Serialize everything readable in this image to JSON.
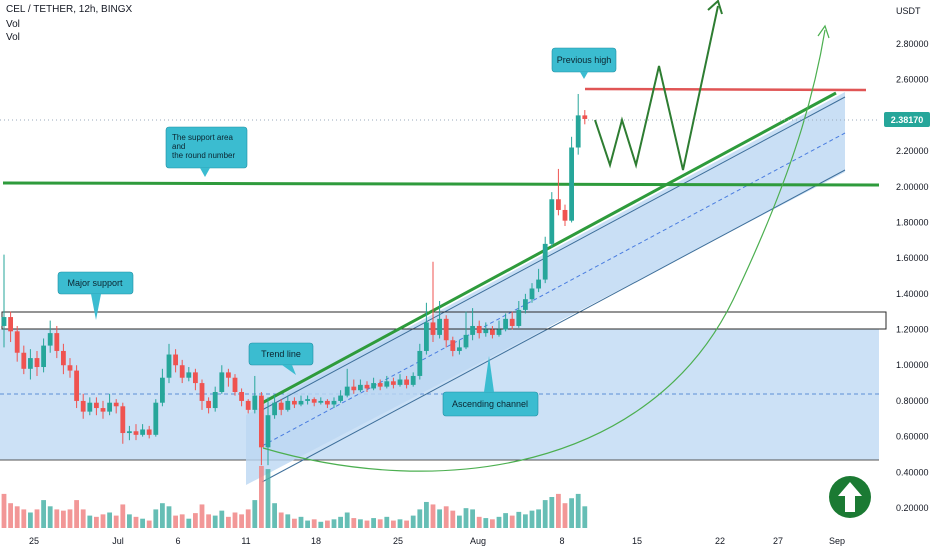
{
  "header": {
    "symbol": "CEL / TETHER, 12h, BINGX",
    "indicator1": "Vol",
    "indicator2": "Vol"
  },
  "currency": "USDT",
  "last_price": "2.38170",
  "colors": {
    "up": "#26a69a",
    "down": "#ef5350",
    "vol_up": "#4bb3a8",
    "vol_down": "#f08585",
    "drawing_green": "#2e9b3c",
    "resistance_red": "#e05555",
    "channel_fill": "#bbd7f3",
    "callout_bg": "#3bbcd0",
    "price_label_bg": "#26a69a",
    "logo_green": "#1b7a33"
  },
  "chart_data": {
    "type": "candlestick",
    "title": "CEL / TETHER, 12h, BINGX",
    "ylim": [
      0.1,
      3.1
    ],
    "yticks": [
      0.2,
      0.4,
      0.6,
      0.8,
      1.0,
      1.2,
      1.4,
      1.6,
      1.8,
      2.0,
      2.2,
      2.4,
      2.6,
      2.8
    ],
    "ytick_labels": [
      "0.20000",
      "0.40000",
      "0.60000",
      "0.80000",
      "1.00000",
      "1.20000",
      "1.40000",
      "1.60000",
      "1.80000",
      "2.00000",
      "2.20000",
      "2.40000",
      "2.60000",
      "2.80000"
    ],
    "xtick_labels": [
      "25",
      "Jul",
      "6",
      "11",
      "18",
      "25",
      "Aug",
      "8",
      "15",
      "22",
      "27",
      "Sep"
    ],
    "last_price": 2.3817,
    "levels": {
      "support_round_number": 2.0,
      "previous_high": 2.53,
      "major_support_top": 1.29,
      "major_support_bottom": 1.2
    },
    "candles": [
      [
        1.22,
        1.27,
        1.62,
        1.1
      ],
      [
        1.27,
        1.19,
        1.3,
        1.13
      ],
      [
        1.19,
        1.07,
        1.22,
        1.02
      ],
      [
        1.07,
        0.98,
        1.11,
        0.95
      ],
      [
        0.98,
        1.04,
        1.09,
        0.92
      ],
      [
        1.04,
        0.99,
        1.08,
        0.94
      ],
      [
        0.99,
        1.11,
        1.15,
        0.96
      ],
      [
        1.11,
        1.18,
        1.25,
        1.07
      ],
      [
        1.18,
        1.08,
        1.22,
        1.04
      ],
      [
        1.08,
        1.0,
        1.12,
        0.95
      ],
      [
        1.0,
        0.97,
        1.04,
        0.93
      ],
      [
        0.97,
        0.8,
        1.0,
        0.76
      ],
      [
        0.8,
        0.74,
        0.84,
        0.7
      ],
      [
        0.74,
        0.79,
        0.82,
        0.72
      ],
      [
        0.79,
        0.76,
        0.82,
        0.72
      ],
      [
        0.76,
        0.74,
        0.8,
        0.7
      ],
      [
        0.74,
        0.79,
        0.84,
        0.72
      ],
      [
        0.79,
        0.77,
        0.81,
        0.73
      ],
      [
        0.77,
        0.62,
        0.79,
        0.56
      ],
      [
        0.62,
        0.63,
        0.66,
        0.58
      ],
      [
        0.63,
        0.61,
        0.67,
        0.58
      ],
      [
        0.61,
        0.64,
        0.67,
        0.6
      ],
      [
        0.64,
        0.61,
        0.66,
        0.59
      ],
      [
        0.61,
        0.79,
        0.81,
        0.6
      ],
      [
        0.79,
        0.93,
        0.98,
        0.77
      ],
      [
        0.93,
        1.06,
        1.12,
        0.9
      ],
      [
        1.06,
        1.0,
        1.09,
        0.96
      ],
      [
        1.0,
        0.93,
        1.03,
        0.9
      ],
      [
        0.93,
        0.96,
        0.99,
        0.91
      ],
      [
        0.96,
        0.9,
        0.98,
        0.86
      ],
      [
        0.9,
        0.8,
        0.92,
        0.75
      ],
      [
        0.8,
        0.76,
        0.82,
        0.73
      ],
      [
        0.76,
        0.85,
        0.88,
        0.74
      ],
      [
        0.85,
        0.96,
        1.0,
        0.84
      ],
      [
        0.96,
        0.93,
        0.98,
        0.88
      ],
      [
        0.93,
        0.85,
        0.95,
        0.83
      ],
      [
        0.85,
        0.8,
        0.87,
        0.77
      ],
      [
        0.8,
        0.75,
        0.81,
        0.73
      ],
      [
        0.75,
        0.83,
        0.94,
        0.73
      ],
      [
        0.83,
        0.54,
        0.85,
        0.44
      ],
      [
        0.54,
        0.72,
        0.82,
        0.44
      ],
      [
        0.72,
        0.79,
        0.83,
        0.7
      ],
      [
        0.79,
        0.75,
        0.81,
        0.72
      ],
      [
        0.75,
        0.8,
        0.83,
        0.74
      ],
      [
        0.8,
        0.78,
        0.82,
        0.76
      ],
      [
        0.78,
        0.8,
        0.83,
        0.77
      ],
      [
        0.8,
        0.81,
        0.83,
        0.78
      ],
      [
        0.81,
        0.79,
        0.82,
        0.77
      ],
      [
        0.79,
        0.8,
        0.82,
        0.78
      ],
      [
        0.8,
        0.78,
        0.81,
        0.76
      ],
      [
        0.78,
        0.8,
        0.82,
        0.76
      ],
      [
        0.8,
        0.83,
        0.86,
        0.79
      ],
      [
        0.83,
        0.88,
        0.98,
        0.82
      ],
      [
        0.88,
        0.86,
        0.92,
        0.84
      ],
      [
        0.86,
        0.89,
        0.92,
        0.85
      ],
      [
        0.89,
        0.87,
        0.91,
        0.85
      ],
      [
        0.87,
        0.9,
        0.93,
        0.86
      ],
      [
        0.9,
        0.88,
        0.92,
        0.86
      ],
      [
        0.88,
        0.91,
        0.94,
        0.87
      ],
      [
        0.91,
        0.89,
        0.93,
        0.87
      ],
      [
        0.89,
        0.92,
        0.95,
        0.88
      ],
      [
        0.92,
        0.89,
        0.94,
        0.87
      ],
      [
        0.89,
        0.94,
        0.96,
        0.88
      ],
      [
        0.94,
        1.08,
        1.12,
        0.92
      ],
      [
        1.08,
        1.24,
        1.35,
        1.06
      ],
      [
        1.24,
        1.17,
        1.58,
        1.13
      ],
      [
        1.17,
        1.26,
        1.36,
        1.15
      ],
      [
        1.26,
        1.14,
        1.28,
        1.1
      ],
      [
        1.14,
        1.08,
        1.16,
        1.05
      ],
      [
        1.08,
        1.1,
        1.14,
        1.06
      ],
      [
        1.1,
        1.17,
        1.3,
        1.09
      ],
      [
        1.17,
        1.22,
        1.32,
        1.14
      ],
      [
        1.22,
        1.18,
        1.25,
        1.15
      ],
      [
        1.18,
        1.2,
        1.24,
        1.16
      ],
      [
        1.2,
        1.17,
        1.22,
        1.15
      ],
      [
        1.17,
        1.2,
        1.25,
        1.16
      ],
      [
        1.2,
        1.26,
        1.29,
        1.19
      ],
      [
        1.26,
        1.22,
        1.3,
        1.2
      ],
      [
        1.22,
        1.31,
        1.36,
        1.21
      ],
      [
        1.31,
        1.37,
        1.4,
        1.29
      ],
      [
        1.37,
        1.43,
        1.46,
        1.35
      ],
      [
        1.43,
        1.48,
        1.54,
        1.41
      ],
      [
        1.48,
        1.68,
        1.72,
        1.46
      ],
      [
        1.68,
        1.93,
        1.97,
        1.66
      ],
      [
        1.93,
        1.87,
        2.1,
        1.84
      ],
      [
        1.87,
        1.81,
        1.9,
        1.78
      ],
      [
        1.81,
        2.22,
        2.28,
        1.8
      ],
      [
        2.22,
        2.4,
        2.52,
        2.18
      ],
      [
        2.4,
        2.38,
        2.43,
        2.35
      ]
    ],
    "volume": [
      [
        0.55,
        0
      ],
      [
        0.4,
        0
      ],
      [
        0.35,
        0
      ],
      [
        0.3,
        0
      ],
      [
        0.25,
        1
      ],
      [
        0.3,
        0
      ],
      [
        0.45,
        1
      ],
      [
        0.35,
        1
      ],
      [
        0.3,
        0
      ],
      [
        0.28,
        0
      ],
      [
        0.3,
        0
      ],
      [
        0.45,
        0
      ],
      [
        0.3,
        0
      ],
      [
        0.2,
        1
      ],
      [
        0.18,
        0
      ],
      [
        0.22,
        0
      ],
      [
        0.25,
        1
      ],
      [
        0.2,
        0
      ],
      [
        0.38,
        0
      ],
      [
        0.22,
        1
      ],
      [
        0.18,
        0
      ],
      [
        0.15,
        1
      ],
      [
        0.12,
        0
      ],
      [
        0.3,
        1
      ],
      [
        0.4,
        1
      ],
      [
        0.35,
        1
      ],
      [
        0.2,
        0
      ],
      [
        0.22,
        0
      ],
      [
        0.15,
        1
      ],
      [
        0.24,
        0
      ],
      [
        0.38,
        0
      ],
      [
        0.22,
        0
      ],
      [
        0.2,
        1
      ],
      [
        0.28,
        1
      ],
      [
        0.18,
        0
      ],
      [
        0.25,
        0
      ],
      [
        0.22,
        0
      ],
      [
        0.3,
        0
      ],
      [
        0.45,
        1
      ],
      [
        1.0,
        0
      ],
      [
        0.95,
        1
      ],
      [
        0.4,
        1
      ],
      [
        0.25,
        0
      ],
      [
        0.22,
        1
      ],
      [
        0.15,
        0
      ],
      [
        0.18,
        1
      ],
      [
        0.12,
        1
      ],
      [
        0.14,
        0
      ],
      [
        0.1,
        1
      ],
      [
        0.12,
        0
      ],
      [
        0.14,
        1
      ],
      [
        0.18,
        1
      ],
      [
        0.25,
        1
      ],
      [
        0.16,
        0
      ],
      [
        0.14,
        1
      ],
      [
        0.12,
        0
      ],
      [
        0.16,
        1
      ],
      [
        0.14,
        0
      ],
      [
        0.18,
        1
      ],
      [
        0.12,
        0
      ],
      [
        0.14,
        1
      ],
      [
        0.12,
        0
      ],
      [
        0.2,
        1
      ],
      [
        0.3,
        1
      ],
      [
        0.42,
        1
      ],
      [
        0.38,
        0
      ],
      [
        0.3,
        1
      ],
      [
        0.35,
        0
      ],
      [
        0.28,
        0
      ],
      [
        0.2,
        1
      ],
      [
        0.32,
        1
      ],
      [
        0.3,
        1
      ],
      [
        0.18,
        0
      ],
      [
        0.16,
        1
      ],
      [
        0.14,
        0
      ],
      [
        0.18,
        1
      ],
      [
        0.24,
        1
      ],
      [
        0.2,
        0
      ],
      [
        0.26,
        1
      ],
      [
        0.22,
        1
      ],
      [
        0.28,
        1
      ],
      [
        0.3,
        1
      ],
      [
        0.45,
        1
      ],
      [
        0.5,
        1
      ],
      [
        0.55,
        0
      ],
      [
        0.4,
        0
      ],
      [
        0.48,
        1
      ],
      [
        0.55,
        1
      ],
      [
        0.35,
        1
      ]
    ]
  },
  "annotations": {
    "previous_high": "Previous high",
    "support_area_1": "The support area",
    "support_area_2": "and",
    "support_area_3": "the round number",
    "major_support": "Major support",
    "trend_line": "Trend line",
    "ascending_channel": "Ascending channel"
  }
}
